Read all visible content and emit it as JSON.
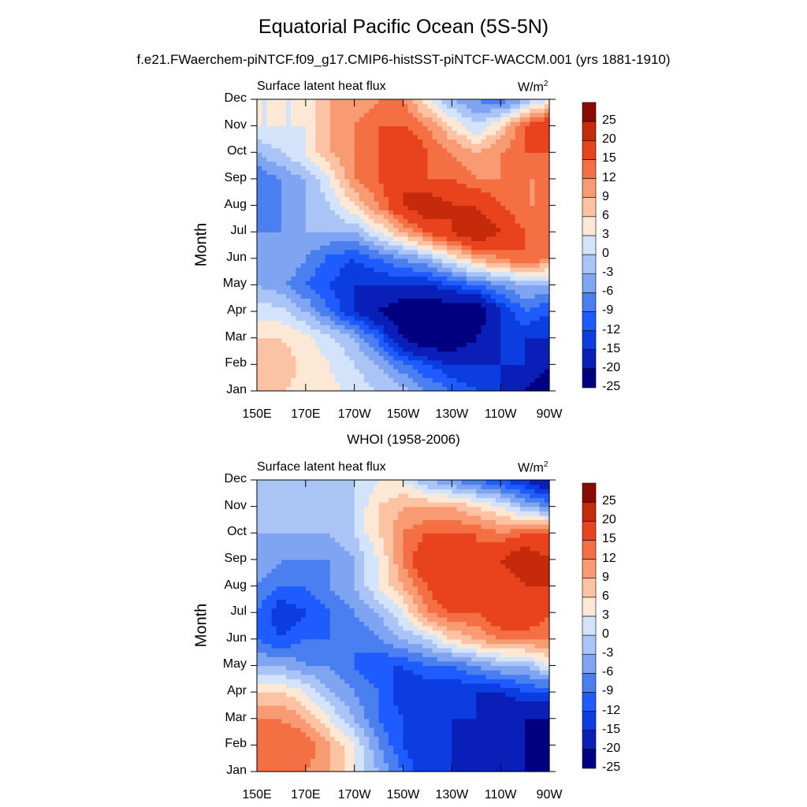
{
  "title": "Equatorial Pacific Ocean (5S-5N)",
  "subtitle": "f.e21.FWaerchem-piNTCF.f09_g17.CMIP6-histSST-piNTCF-WACCM.001 (yrs 1881-1910)",
  "colors": [
    "#000080",
    "#0a1fb8",
    "#0b3de0",
    "#1f5cff",
    "#4a7ff0",
    "#7ea4f2",
    "#a9c4f5",
    "#d2e3fa",
    "#fde8d6",
    "#fbc3a3",
    "#f89a72",
    "#f46f43",
    "#e8431c",
    "#c42b0b",
    "#8a0a04"
  ],
  "levels": [
    "-25",
    "-20",
    "-15",
    "-12",
    "-9",
    "-6",
    "-3",
    "0",
    "3",
    "6",
    "9",
    "12",
    "15",
    "20",
    "25"
  ],
  "chart_data": [
    {
      "type": "heatmap",
      "title": "",
      "left_label": "Surface latent heat flux",
      "right_label": "W/m",
      "right_label_sup": "2",
      "xlabel": "",
      "ylabel": "Month",
      "x_ticks": [
        "150E",
        "170E",
        "170W",
        "150W",
        "130W",
        "110W",
        "90W"
      ],
      "y_ticks": [
        "Jan",
        "Feb",
        "Mar",
        "Apr",
        "May",
        "Jun",
        "Jul",
        "Aug",
        "Sep",
        "Oct",
        "Nov",
        "Dec"
      ],
      "xlim": [
        150,
        270
      ],
      "months": [
        "Jan",
        "Feb",
        "Mar",
        "Apr",
        "May",
        "Jun",
        "Jul",
        "Aug",
        "Sep",
        "Oct",
        "Nov",
        "Dec"
      ],
      "lons": [
        150,
        160,
        170,
        180,
        190,
        200,
        210,
        220,
        230,
        240,
        250,
        260,
        270
      ],
      "z": [
        [
          6,
          6,
          5,
          4,
          2,
          0,
          -2,
          -6,
          -9,
          -12,
          -15,
          -20,
          -25
        ],
        [
          7,
          8,
          5,
          3,
          0,
          -3,
          -8,
          -12,
          -15,
          -15,
          -15,
          -15,
          -20
        ],
        [
          6,
          6,
          4,
          1,
          -3,
          -10,
          -20,
          -25,
          -25,
          -20,
          -15,
          -15,
          -15
        ],
        [
          2,
          1,
          -3,
          -9,
          -15,
          -20,
          -25,
          -25,
          -25,
          -25,
          -15,
          -9,
          -12
        ],
        [
          -3,
          -5,
          -9,
          -12,
          -15,
          -15,
          -15,
          -15,
          -12,
          -9,
          -6,
          -3,
          -3
        ],
        [
          -3,
          -3,
          -6,
          -10,
          -12,
          -9,
          -6,
          -3,
          3,
          9,
          12,
          15,
          12
        ],
        [
          -6,
          -6,
          -3,
          -3,
          -3,
          3,
          9,
          15,
          20,
          25,
          20,
          15,
          12
        ],
        [
          -9,
          -6,
          -3,
          0,
          6,
          12,
          20,
          25,
          20,
          20,
          15,
          12,
          12
        ],
        [
          -9,
          -6,
          -3,
          3,
          12,
          15,
          20,
          15,
          15,
          12,
          12,
          12,
          12
        ],
        [
          -3,
          0,
          3,
          9,
          12,
          15,
          20,
          15,
          12,
          9,
          12,
          15,
          15
        ],
        [
          3,
          3,
          3,
          9,
          12,
          15,
          15,
          12,
          6,
          0,
          6,
          15,
          20
        ],
        [
          3,
          3,
          3,
          9,
          9,
          12,
          12,
          3,
          -3,
          -6,
          -9,
          -3,
          3
        ]
      ]
    },
    {
      "type": "heatmap",
      "title": "WHOI (1958-2006)",
      "left_label": "Surface latent heat flux",
      "right_label": "W/m",
      "right_label_sup": "2",
      "xlabel": "",
      "ylabel": "Month",
      "x_ticks": [
        "150E",
        "170E",
        "170W",
        "150W",
        "130W",
        "110W",
        "90W"
      ],
      "y_ticks": [
        "Jan",
        "Feb",
        "Mar",
        "Apr",
        "May",
        "Jun",
        "Jul",
        "Aug",
        "Sep",
        "Oct",
        "Nov",
        "Dec"
      ],
      "xlim": [
        150,
        270
      ],
      "months": [
        "Jan",
        "Feb",
        "Mar",
        "Apr",
        "May",
        "Jun",
        "Jul",
        "Aug",
        "Sep",
        "Oct",
        "Nov",
        "Dec"
      ],
      "lons": [
        150,
        160,
        170,
        180,
        190,
        200,
        210,
        220,
        230,
        240,
        250,
        260,
        270
      ],
      "z": [
        [
          12,
          15,
          12,
          9,
          3,
          -3,
          -9,
          -15,
          -15,
          -15,
          -20,
          -20,
          -25
        ],
        [
          15,
          15,
          15,
          9,
          3,
          -6,
          -12,
          -15,
          -15,
          -20,
          -20,
          -20,
          -25
        ],
        [
          12,
          12,
          9,
          3,
          -3,
          -9,
          -12,
          -15,
          -15,
          -15,
          -20,
          -20,
          -20
        ],
        [
          6,
          6,
          3,
          -3,
          -6,
          -9,
          -15,
          -15,
          -15,
          -15,
          -15,
          -12,
          -12
        ],
        [
          -3,
          -3,
          -6,
          -6,
          -9,
          -12,
          -12,
          -9,
          -9,
          -6,
          -3,
          -3,
          3
        ],
        [
          -9,
          -12,
          -9,
          -9,
          -9,
          -6,
          -3,
          0,
          6,
          9,
          12,
          12,
          12
        ],
        [
          -9,
          -15,
          -12,
          -9,
          -6,
          -3,
          3,
          12,
          15,
          15,
          20,
          20,
          15
        ],
        [
          -6,
          -9,
          -9,
          -6,
          -3,
          3,
          9,
          15,
          20,
          15,
          15,
          20,
          20
        ],
        [
          -3,
          -6,
          -6,
          -6,
          -3,
          3,
          12,
          20,
          20,
          15,
          20,
          25,
          20
        ],
        [
          -3,
          -3,
          -3,
          -3,
          0,
          6,
          12,
          15,
          15,
          15,
          12,
          15,
          15
        ],
        [
          -3,
          -3,
          -3,
          -3,
          0,
          6,
          9,
          9,
          9,
          6,
          3,
          -3,
          -6
        ],
        [
          -3,
          -3,
          0,
          0,
          0,
          3,
          3,
          -3,
          -6,
          -9,
          -12,
          -15,
          -20
        ]
      ]
    }
  ]
}
